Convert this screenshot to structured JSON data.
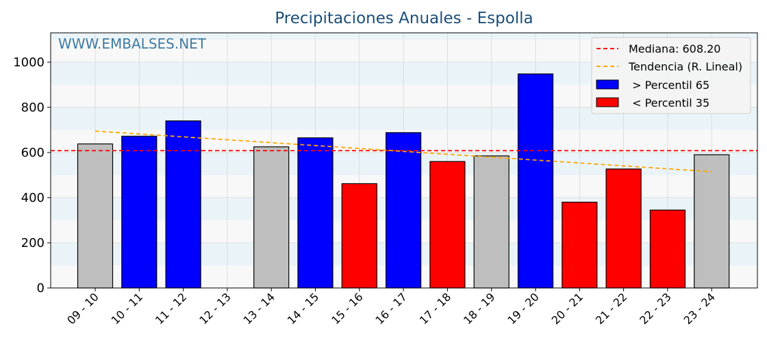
{
  "chart_data": {
    "type": "bar",
    "title": "Precipitaciones Anuales - Espolla",
    "watermark": "WWW.EMBALSES.NET",
    "xlabel": "",
    "ylabel": "",
    "ylim": [
      0,
      1130
    ],
    "yticks": [
      0,
      200,
      400,
      600,
      800,
      1000
    ],
    "categories": [
      "09 - 10",
      "10 - 11",
      "11 - 12",
      "12 - 13",
      "13 - 14",
      "14 - 15",
      "15 - 16",
      "16 - 17",
      "17 - 18",
      "18 - 19",
      "19 - 20",
      "20 - 21",
      "21 - 22",
      "22 - 23",
      "23 - 24"
    ],
    "values": [
      638,
      672,
      740,
      0,
      625,
      665,
      462,
      688,
      560,
      585,
      948,
      380,
      527,
      345,
      590
    ],
    "bar_classes": [
      "mid",
      "high",
      "high",
      "none",
      "mid",
      "high",
      "low",
      "high",
      "low",
      "mid",
      "high",
      "low",
      "low",
      "low",
      "mid"
    ],
    "class_colors": {
      "high": "#0000ff",
      "low": "#ff0000",
      "mid": "#bebebe",
      "none": "#bebebe"
    },
    "median": 608.2,
    "trend": {
      "start": 695,
      "end": 515
    },
    "colors": {
      "median": "#ff0000",
      "trend": "#ffa500",
      "band": "#eaf4f8",
      "band_alt": "#f8f8f8"
    },
    "legend": {
      "position": "top-right",
      "median_label": "Mediana: 608.20",
      "trend_label": "Tendencia (R. Lineal)",
      "high_label": " > Percentil 65",
      "low_label": " < Percentil 35"
    }
  }
}
